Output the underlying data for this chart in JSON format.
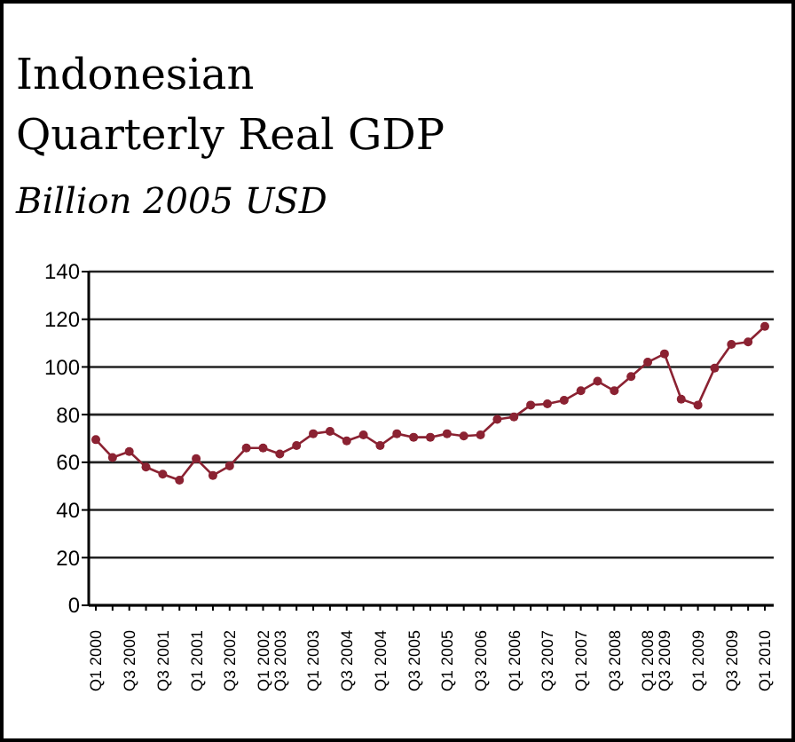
{
  "chart_data": {
    "type": "line",
    "title": "Indonesian Quarterly Real GDP",
    "subtitle": "Billion 2005 USD",
    "categories": [
      "Q1 2000",
      null,
      "Q3 2000",
      null,
      "Q3 2001",
      null,
      "Q1 2001",
      null,
      "Q3 2002",
      null,
      "Q1 2002",
      "Q3 2003",
      null,
      "Q1 2003",
      null,
      "Q3 2004",
      null,
      "Q1 2004",
      null,
      "Q3 2005",
      null,
      "Q1 2005",
      null,
      "Q3 2006",
      null,
      "Q1 2006",
      null,
      "Q3 2007",
      null,
      "Q1 2007",
      null,
      "Q3 2008",
      null,
      "Q1 2008",
      "Q3 2009",
      null,
      "Q1 2009",
      null,
      "Q3 2009",
      null,
      "Q1 2010"
    ],
    "series": [
      {
        "color": "#8b2232",
        "values": [
          69.5,
          62,
          64.5,
          58,
          55,
          52.5,
          61.5,
          54.5,
          58.5,
          66,
          66,
          63.5,
          67,
          72,
          73,
          69,
          71.5,
          67,
          72,
          70.5,
          70.5,
          72,
          71,
          71.5,
          78,
          79,
          84,
          84.5,
          86,
          90,
          94,
          90,
          96,
          102,
          105.5,
          86.5,
          84,
          99.5,
          109.5,
          110.5,
          117
        ]
      }
    ],
    "ylim": [
      0,
      140
    ],
    "yticks": [
      0,
      20,
      40,
      60,
      80,
      100,
      120,
      140
    ],
    "grid": "y",
    "marker": "circle",
    "line_style": "solid"
  }
}
